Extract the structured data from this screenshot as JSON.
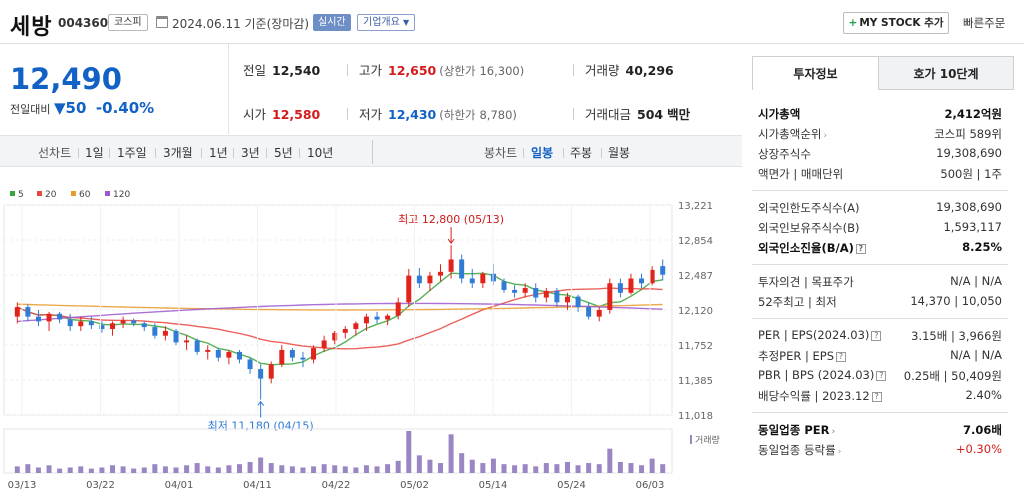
{
  "header": {
    "name": "세방",
    "code": "004360",
    "market": "코스피",
    "date": "2024.06.11 기준(장마감)",
    "realtime": "실시간",
    "overview": "기업개요",
    "mystock": "MY STOCK 추가",
    "quick_order": "빠른주문"
  },
  "price": {
    "current": "12,490",
    "change_label": "전일대비",
    "change_value": "50",
    "change_pct": "-0.40%"
  },
  "summary": {
    "prev_label": "전일",
    "prev": "12,540",
    "high_label": "고가",
    "high": "12,650",
    "upper_label": "(상한가",
    "upper": "16,300)",
    "volume_label": "거래량",
    "volume": "40,296",
    "open_label": "시가",
    "open": "12,580",
    "low_label": "저가",
    "low": "12,430",
    "lower_label": "(하한가",
    "lower": "8,780)",
    "amount_label": "거래대금",
    "amount": "504",
    "amount_unit": "백만"
  },
  "period_bar": {
    "line_chart": "선차트",
    "periods": [
      "1일",
      "1주일",
      "3개월",
      "1년",
      "3년",
      "5년",
      "10년"
    ],
    "candle_chart": "봉차트",
    "candles": [
      "일봉",
      "주봉",
      "월봉"
    ],
    "active_candle": "일봉"
  },
  "chart_data": {
    "type": "candlestick",
    "legend": [
      {
        "name": "5",
        "color": "#3aa33a"
      },
      {
        "name": "20",
        "color": "#e8473f"
      },
      {
        "name": "60",
        "color": "#e89a2c"
      },
      {
        "name": "120",
        "color": "#9b59d0"
      }
    ],
    "y_ticks": [
      "13,221",
      "12,854",
      "12,487",
      "12,120",
      "11,752",
      "11,385",
      "11,018"
    ],
    "ylim": [
      11018,
      13221
    ],
    "x_ticks": [
      "03/13",
      "03/22",
      "04/01",
      "04/11",
      "04/22",
      "05/02",
      "05/14",
      "05/24",
      "06/03"
    ],
    "high_annotation": "최고 12,800 (05/13)",
    "low_annotation": "최저 11,180 (04/15)",
    "volume_label": "거래량",
    "colors": {
      "up": "#e2231a",
      "down": "#2f7bd6",
      "volume": "#9b86c4"
    },
    "candles": [
      [
        12050,
        12200,
        11980,
        12150
      ],
      [
        12150,
        12180,
        12000,
        12050
      ],
      [
        12050,
        12120,
        11950,
        12000
      ],
      [
        12000,
        12100,
        11900,
        12080
      ],
      [
        12080,
        12100,
        11980,
        12020
      ],
      [
        12020,
        12080,
        11900,
        11950
      ],
      [
        11950,
        12050,
        11900,
        12000
      ],
      [
        12000,
        12050,
        11920,
        11960
      ],
      [
        11960,
        12000,
        11880,
        11920
      ],
      [
        11920,
        12000,
        11850,
        11980
      ],
      [
        11980,
        12050,
        11930,
        12010
      ],
      [
        12010,
        12030,
        11950,
        11980
      ],
      [
        11980,
        12000,
        11900,
        11940
      ],
      [
        11940,
        11980,
        11820,
        11850
      ],
      [
        11850,
        11950,
        11800,
        11900
      ],
      [
        11900,
        11920,
        11750,
        11780
      ],
      [
        11780,
        11850,
        11700,
        11800
      ],
      [
        11800,
        11820,
        11650,
        11680
      ],
      [
        11680,
        11750,
        11600,
        11700
      ],
      [
        11700,
        11720,
        11580,
        11620
      ],
      [
        11620,
        11700,
        11550,
        11680
      ],
      [
        11680,
        11700,
        11560,
        11600
      ],
      [
        11600,
        11620,
        11450,
        11500
      ],
      [
        11500,
        11550,
        11180,
        11400
      ],
      [
        11400,
        11580,
        11350,
        11550
      ],
      [
        11550,
        11750,
        11520,
        11700
      ],
      [
        11700,
        11720,
        11580,
        11620
      ],
      [
        11620,
        11680,
        11520,
        11600
      ],
      [
        11600,
        11750,
        11560,
        11720
      ],
      [
        11720,
        11850,
        11680,
        11800
      ],
      [
        11800,
        11900,
        11760,
        11880
      ],
      [
        11880,
        11950,
        11820,
        11920
      ],
      [
        11920,
        12000,
        11850,
        11980
      ],
      [
        11980,
        12080,
        11900,
        12050
      ],
      [
        12050,
        12100,
        11980,
        12020
      ],
      [
        12020,
        12080,
        11960,
        12060
      ],
      [
        12060,
        12250,
        12020,
        12200
      ],
      [
        12200,
        12550,
        12150,
        12480
      ],
      [
        12480,
        12560,
        12350,
        12400
      ],
      [
        12400,
        12520,
        12320,
        12480
      ],
      [
        12480,
        12600,
        12420,
        12520
      ],
      [
        12520,
        12800,
        12450,
        12650
      ],
      [
        12650,
        12700,
        12400,
        12450
      ],
      [
        12450,
        12550,
        12350,
        12400
      ],
      [
        12400,
        12520,
        12350,
        12500
      ],
      [
        12500,
        12600,
        12380,
        12420
      ],
      [
        12420,
        12450,
        12300,
        12330
      ],
      [
        12330,
        12380,
        12250,
        12300
      ],
      [
        12300,
        12400,
        12250,
        12350
      ],
      [
        12350,
        12400,
        12200,
        12250
      ],
      [
        12250,
        12350,
        12200,
        12320
      ],
      [
        12320,
        12350,
        12150,
        12200
      ],
      [
        12200,
        12300,
        12120,
        12260
      ],
      [
        12260,
        12280,
        12100,
        12150
      ],
      [
        12150,
        12200,
        12020,
        12050
      ],
      [
        12050,
        12150,
        12000,
        12120
      ],
      [
        12120,
        12450,
        12080,
        12400
      ],
      [
        12400,
        12450,
        12250,
        12300
      ],
      [
        12300,
        12500,
        12280,
        12450
      ],
      [
        12450,
        12500,
        12350,
        12400
      ],
      [
        12400,
        12580,
        12380,
        12540
      ],
      [
        12580,
        12650,
        12430,
        12490
      ]
    ],
    "volume": [
      6,
      8,
      5,
      7,
      4,
      5,
      6,
      4,
      5,
      7,
      6,
      4,
      5,
      8,
      6,
      5,
      7,
      9,
      6,
      5,
      7,
      8,
      10,
      14,
      9,
      7,
      6,
      5,
      6,
      8,
      7,
      6,
      5,
      7,
      6,
      8,
      11,
      38,
      16,
      12,
      9,
      35,
      18,
      12,
      9,
      13,
      8,
      7,
      8,
      6,
      9,
      8,
      10,
      7,
      9,
      8,
      22,
      10,
      9,
      7,
      13,
      8
    ]
  },
  "right_panel": {
    "tab1": "투자정보",
    "tab2": "호가 10단계",
    "rows": [
      {
        "k": "시가총액",
        "v": "2,412억원"
      },
      {
        "k": "시가총액순위",
        "v": "코스피 589위"
      },
      {
        "k": "상장주식수",
        "v": "19,308,690"
      },
      {
        "k": "액면가 | 매매단위",
        "v": "500원 | 1주"
      },
      {
        "k": "외국인한도주식수(A)",
        "v": "19,308,690"
      },
      {
        "k": "외국인보유주식수(B)",
        "v": "1,593,117"
      },
      {
        "k": "외국인소진율(B/A)",
        "v": "8.25%"
      },
      {
        "k": "투자의견 | 목표주가",
        "v": "N/A | N/A"
      },
      {
        "k": "52주최고 | 최저",
        "v": "14,370 | 10,050"
      },
      {
        "k": "PER | EPS(2024.03)",
        "v": "3.15배 | 3,966원"
      },
      {
        "k": "추정PER | EPS",
        "v": "N/A | N/A"
      },
      {
        "k": "PBR | BPS (2024.03)",
        "v": "0.25배 | 50,409원"
      },
      {
        "k": "배당수익률 | 2023.12",
        "v": "2.40%"
      },
      {
        "k": "동일업종 PER",
        "v": "7.06배"
      },
      {
        "k": "동일업종 등락률",
        "v": "+0.30%"
      }
    ]
  }
}
